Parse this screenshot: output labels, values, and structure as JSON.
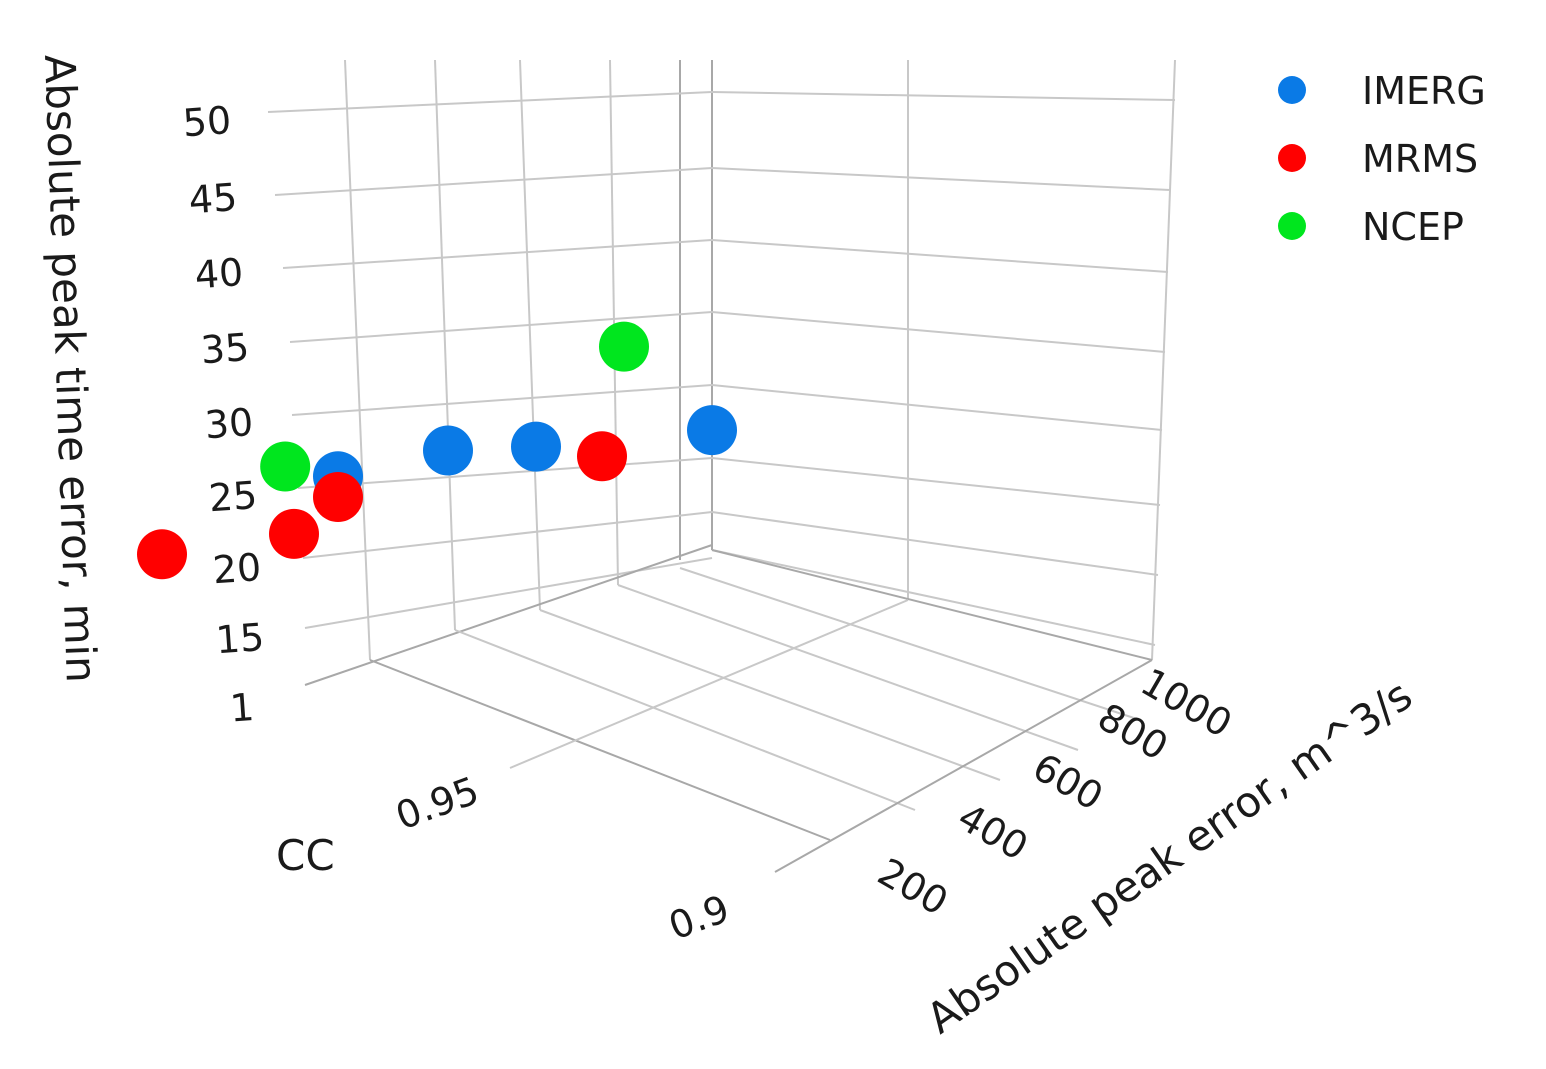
{
  "chart_data": {
    "type": "scatter",
    "title": "",
    "axes": {
      "z": {
        "label": "Absolute peak time error, min",
        "ticks": [
          "1",
          "15",
          "20",
          "25",
          "30",
          "35",
          "40",
          "45",
          "50"
        ]
      },
      "cc": {
        "label": "CC",
        "ticks": [
          "0.95",
          "0.9"
        ]
      },
      "x": {
        "label": "Absolute peak error, m^3/s",
        "ticks": [
          "200",
          "400",
          "600",
          "800",
          "1000"
        ]
      }
    },
    "legend_position": "top-right",
    "series": [
      {
        "name": "IMERG",
        "color": "#0a7ae6",
        "points": [
          {
            "cc": 0.965,
            "peak_error": 150,
            "time_error": 27
          },
          {
            "cc": 0.95,
            "peak_error": 350,
            "time_error": 27
          },
          {
            "cc": 0.95,
            "peak_error": 800,
            "time_error": 38
          },
          {
            "cc": 0.965,
            "peak_error": 750,
            "time_error": 39
          }
        ]
      },
      {
        "name": "MRMS",
        "color": "#ff0000",
        "points": [
          {
            "cc": 0.955,
            "peak_error": 100,
            "time_error": 15
          },
          {
            "cc": 0.94,
            "peak_error": 250,
            "time_error": 15
          },
          {
            "cc": 0.96,
            "peak_error": 650,
            "time_error": 34
          },
          {
            "cc": 0.93,
            "peak_error": 950,
            "time_error": 34
          }
        ]
      },
      {
        "name": "NCEP",
        "color": "#00e61e",
        "points": [
          {
            "cc": 0.945,
            "peak_error": 380,
            "time_error": 29
          },
          {
            "cc": 0.96,
            "peak_error": 700,
            "time_error": 50
          }
        ]
      }
    ]
  }
}
